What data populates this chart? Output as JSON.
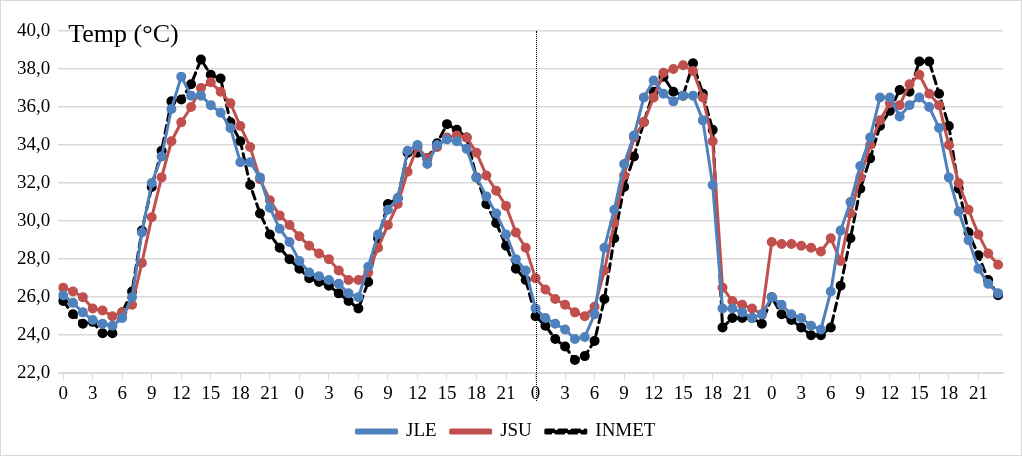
{
  "chart_data": {
    "type": "line",
    "title": "Temp (°C)",
    "categories": [
      "0",
      null,
      null,
      "3",
      null,
      null,
      "6",
      null,
      null,
      "9",
      null,
      null,
      "12",
      null,
      null,
      "15",
      null,
      null,
      "18",
      null,
      null,
      "21",
      null,
      null,
      "0",
      null,
      null,
      "3",
      null,
      null,
      "6",
      null,
      null,
      "9",
      null,
      null,
      "12",
      null,
      null,
      "15",
      null,
      null,
      "18",
      null,
      null,
      "21",
      null,
      null,
      "0",
      null,
      null,
      "3",
      null,
      null,
      "6",
      null,
      null,
      "9",
      null,
      null,
      "12",
      null,
      null,
      "15",
      null,
      null,
      "18",
      null,
      null,
      "21",
      null,
      null,
      "0",
      null,
      null,
      "3",
      null,
      null,
      "6",
      null,
      null,
      "9",
      null,
      null,
      "12",
      null,
      null,
      "15",
      null,
      null,
      "18",
      null,
      null,
      "21",
      null,
      null
    ],
    "series": [
      {
        "name": "JLE",
        "color": "#4f81bd",
        "values": [
          26.1,
          25.7,
          25.2,
          24.8,
          24.6,
          24.5,
          24.9,
          26.0,
          29.4,
          32.0,
          33.4,
          35.9,
          37.6,
          36.6,
          36.6,
          36.1,
          35.7,
          34.9,
          33.1,
          33.1,
          32.3,
          30.7,
          29.6,
          28.9,
          27.9,
          27.3,
          27.1,
          26.9,
          26.7,
          26.2,
          26.0,
          27.6,
          29.3,
          30.6,
          31.2,
          33.7,
          34.0,
          33.0,
          34.0,
          34.3,
          34.2,
          33.8,
          32.3,
          31.3,
          30.4,
          29.3,
          28.0,
          27.4,
          25.4,
          24.9,
          24.6,
          24.3,
          23.8,
          23.9,
          25.1,
          28.6,
          30.6,
          33.0,
          34.5,
          36.5,
          37.4,
          36.7,
          36.3,
          36.6,
          36.6,
          35.3,
          31.9,
          25.4,
          25.4,
          25.2,
          24.9,
          25.1,
          26.0,
          25.6,
          25.1,
          24.9,
          24.5,
          24.3,
          26.3,
          29.5,
          31.0,
          32.9,
          34.4,
          36.5,
          36.5,
          35.5,
          36.1,
          36.5,
          36.0,
          34.9,
          32.3,
          30.5,
          29.0,
          27.5,
          26.7,
          26.2
        ]
      },
      {
        "name": "JSU",
        "color": "#c0504d",
        "values": [
          26.5,
          26.3,
          26.0,
          25.4,
          25.3,
          25.0,
          25.2,
          25.6,
          27.8,
          30.2,
          32.3,
          34.2,
          35.2,
          36.0,
          37.0,
          37.3,
          36.8,
          36.2,
          35.0,
          33.9,
          32.2,
          31.1,
          30.3,
          29.8,
          29.2,
          28.7,
          28.3,
          28.0,
          27.4,
          26.9,
          26.9,
          27.3,
          28.6,
          29.8,
          30.9,
          32.6,
          33.9,
          33.3,
          33.9,
          34.4,
          34.5,
          34.4,
          33.6,
          32.4,
          31.6,
          30.8,
          29.4,
          28.6,
          27.0,
          26.4,
          25.9,
          25.6,
          25.2,
          25.0,
          25.5,
          27.4,
          29.9,
          32.4,
          34.4,
          35.2,
          36.5,
          37.8,
          38.0,
          38.2,
          37.9,
          36.5,
          34.2,
          26.5,
          25.8,
          25.6,
          25.4,
          25.1,
          28.9,
          28.8,
          28.8,
          28.7,
          28.6,
          28.4,
          29.1,
          27.9,
          30.4,
          32.3,
          34.0,
          35.3,
          36.2,
          36.1,
          37.2,
          37.7,
          36.7,
          36.1,
          34.0,
          32.0,
          30.6,
          29.3,
          28.3,
          27.7
        ]
      },
      {
        "name": "INMET",
        "color": "#000000",
        "line_style": "dashed",
        "values": [
          25.8,
          25.1,
          24.6,
          24.7,
          24.1,
          24.1,
          25.2,
          26.3,
          29.5,
          31.8,
          33.7,
          36.3,
          36.4,
          37.2,
          38.5,
          37.7,
          37.5,
          35.2,
          34.2,
          31.9,
          30.4,
          29.3,
          28.6,
          28.0,
          27.5,
          27.0,
          26.8,
          26.6,
          26.2,
          25.8,
          25.4,
          26.8,
          29.1,
          30.9,
          31.2,
          33.6,
          33.6,
          33.3,
          34.1,
          35.1,
          34.8,
          34.4,
          32.3,
          30.9,
          29.9,
          28.7,
          27.5,
          26.9,
          25.0,
          24.5,
          23.8,
          23.4,
          22.7,
          22.9,
          23.7,
          25.9,
          29.1,
          31.8,
          33.4,
          35.2,
          36.8,
          37.6,
          36.8,
          36.6,
          38.3,
          36.7,
          34.8,
          24.4,
          24.9,
          24.9,
          24.9,
          24.6,
          26.0,
          25.1,
          24.8,
          24.4,
          24.0,
          24.0,
          24.4,
          26.6,
          29.1,
          31.7,
          33.3,
          35.0,
          35.8,
          36.9,
          36.8,
          38.4,
          38.4,
          36.7,
          35.0,
          31.7,
          29.4,
          28.2,
          26.9,
          26.1
        ]
      }
    ],
    "ylim": [
      22,
      40
    ],
    "yticks": [
      {
        "value": 22,
        "label": "22,0"
      },
      {
        "value": 24,
        "label": "24,0"
      },
      {
        "value": 26,
        "label": "26,0"
      },
      {
        "value": 28,
        "label": "28,0"
      },
      {
        "value": 30,
        "label": "30,0"
      },
      {
        "value": 32,
        "label": "32,0"
      },
      {
        "value": 34,
        "label": "34,0"
      },
      {
        "value": 36,
        "label": "36,0"
      },
      {
        "value": 38,
        "label": "38,0"
      },
      {
        "value": 40,
        "label": "40,0"
      }
    ],
    "grid": "y",
    "legend": "bottom",
    "marker": "circle"
  }
}
